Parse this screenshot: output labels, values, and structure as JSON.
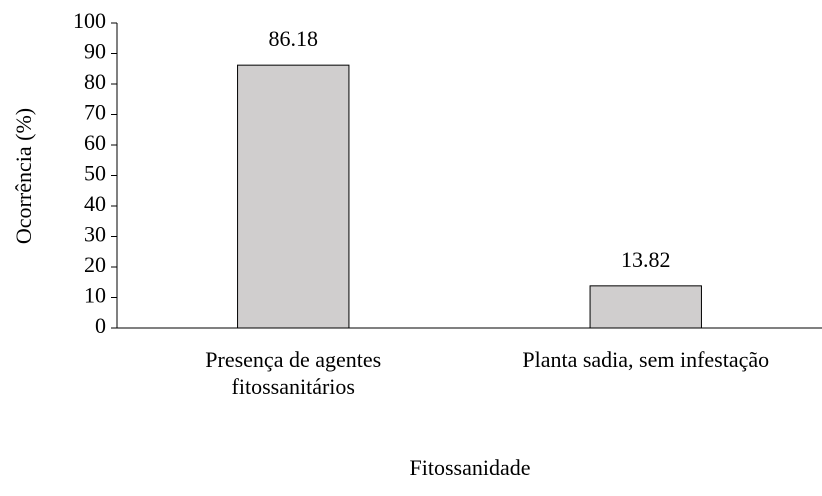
{
  "chart_data": {
    "type": "bar",
    "x_label": "Fitossanidade",
    "y_label": "Ocorrência (%)",
    "categories": [
      "Presença de agentes\nfitossanitários",
      "Planta sadia, sem infestação"
    ],
    "values": [
      86.18,
      13.82
    ],
    "color": "#d0cece",
    "ylim": [
      0,
      100
    ],
    "yticks": [
      0,
      10,
      20,
      30,
      40,
      50,
      60,
      70,
      80,
      90,
      100
    ],
    "grid": false
  }
}
